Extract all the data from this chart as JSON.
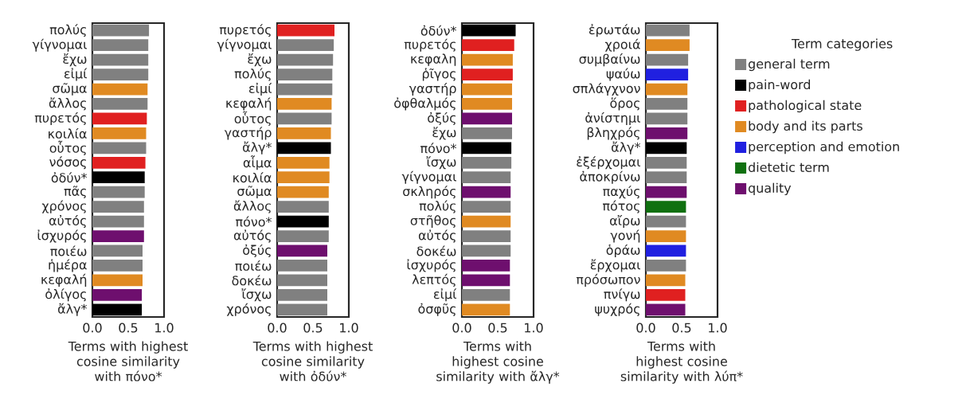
{
  "chart_data": [
    {
      "type": "bar",
      "orientation": "horizontal",
      "xlabel": "Terms with highest cosine similarity with πόνο*",
      "categories": [
        "πολύς",
        "γίγνομαι",
        "ἔχω",
        "εἰμί",
        "σῶμα",
        "ἄλλος",
        "πυρετός",
        "κοιλία",
        "οὗτος",
        "νόσος",
        "ὀδύν*",
        "πᾶς",
        "χρόνος",
        "αὐτός",
        "ἰσχυρός",
        "ποιέω",
        "ἡμέρα",
        "κεφαλή",
        "ὀλίγος",
        "ἄλγ*"
      ],
      "series": [
        {
          "color": "#808080",
          "values": [
            0.79,
            0.78,
            0.78,
            0.78,
            null,
            0.77,
            null,
            null,
            0.75,
            null,
            null,
            0.73,
            0.72,
            0.72,
            null,
            0.7,
            0.7,
            null,
            null,
            null
          ]
        },
        {
          "color": "#000000",
          "values": [
            null,
            null,
            null,
            null,
            null,
            null,
            null,
            null,
            null,
            null,
            0.73,
            null,
            null,
            null,
            null,
            null,
            null,
            null,
            null,
            0.69
          ]
        },
        {
          "color": "#e02020",
          "values": [
            null,
            null,
            null,
            null,
            null,
            null,
            0.76,
            null,
            null,
            0.74,
            null,
            null,
            null,
            null,
            null,
            null,
            null,
            null,
            null,
            null
          ]
        },
        {
          "color": "#e08a22",
          "values": [
            null,
            null,
            null,
            null,
            0.77,
            null,
            null,
            0.75,
            null,
            null,
            null,
            null,
            null,
            null,
            null,
            null,
            null,
            0.7,
            null,
            null
          ]
        },
        {
          "color": "#6e0f6e",
          "values": [
            null,
            null,
            null,
            null,
            null,
            null,
            null,
            null,
            null,
            null,
            null,
            null,
            null,
            null,
            0.72,
            null,
            null,
            null,
            0.69,
            null
          ]
        }
      ],
      "xlim": [
        0,
        1
      ],
      "xticks": [
        {
          "value": 0,
          "label": "0.0"
        },
        {
          "value": 0.5,
          "label": "0.5"
        },
        {
          "value": 1,
          "label": "1.0"
        }
      ],
      "grid": false,
      "legend": false
    },
    {
      "type": "bar",
      "orientation": "horizontal",
      "xlabel": "Terms with highest cosine similarity with ὀδύν*",
      "categories": [
        "πυρετός",
        "γίγνομαι",
        "ἔχω",
        "πολύς",
        "εἰμί",
        "κεφαλή",
        "οὗτος",
        "γαστήρ",
        "ἄλγ*",
        "αἷμα",
        "κοιλία",
        "σῶμα",
        "ἄλλος",
        "πόνο*",
        "αὐτός",
        "ὀξύς",
        "ποιέω",
        "δοκέω",
        "ἴσχω",
        "χρόνος"
      ],
      "series": [
        {
          "color": "#808080",
          "values": [
            null,
            0.79,
            0.78,
            0.77,
            0.77,
            null,
            0.76,
            null,
            null,
            null,
            null,
            null,
            0.72,
            null,
            0.72,
            null,
            0.7,
            0.7,
            0.7,
            0.7
          ]
        },
        {
          "color": "#000000",
          "values": [
            null,
            null,
            null,
            null,
            null,
            null,
            null,
            null,
            0.75,
            null,
            null,
            null,
            null,
            0.72,
            null,
            null,
            null,
            null,
            null,
            null
          ]
        },
        {
          "color": "#e02020",
          "values": [
            0.8,
            null,
            null,
            null,
            null,
            null,
            null,
            null,
            null,
            null,
            null,
            null,
            null,
            null,
            null,
            null,
            null,
            null,
            null,
            null
          ]
        },
        {
          "color": "#e08a22",
          "values": [
            null,
            null,
            null,
            null,
            null,
            0.76,
            null,
            0.75,
            null,
            0.73,
            0.73,
            0.72,
            null,
            null,
            null,
            null,
            null,
            null,
            null,
            null
          ]
        },
        {
          "color": "#6e0f6e",
          "values": [
            null,
            null,
            null,
            null,
            null,
            null,
            null,
            null,
            null,
            null,
            null,
            null,
            null,
            null,
            null,
            0.7,
            null,
            null,
            null,
            null
          ]
        }
      ],
      "xlim": [
        0,
        1
      ],
      "xticks": [
        {
          "value": 0,
          "label": "0.0"
        },
        {
          "value": 0.5,
          "label": "0.5"
        },
        {
          "value": 1,
          "label": "1.0"
        }
      ],
      "grid": false,
      "legend": false
    },
    {
      "type": "bar",
      "orientation": "horizontal",
      "xlabel": "Terms with highest cosine similarity with ἄλγ*",
      "categories": [
        "ὀδύν*",
        "πυρετός",
        "κεφαλη",
        "ῥῖγος",
        "γαστήρ",
        "ὀφθαλμός",
        "ὀξύς",
        "ἔχω",
        "πόνο*",
        "ἴσχω",
        "γίγνομαι",
        "σκληρός",
        "πολύς",
        "στῆθος",
        "αὐτός",
        "δοκέω",
        "ἰσχυρός",
        "λεπτός",
        "εἰμί",
        "ὀσφῦς"
      ],
      "series": [
        {
          "color": "#808080",
          "values": [
            null,
            null,
            null,
            null,
            null,
            null,
            null,
            0.7,
            null,
            0.69,
            0.68,
            null,
            0.68,
            null,
            0.68,
            0.68,
            null,
            null,
            0.67,
            null
          ]
        },
        {
          "color": "#000000",
          "values": [
            0.75,
            null,
            null,
            null,
            null,
            null,
            null,
            null,
            0.69,
            null,
            null,
            null,
            null,
            null,
            null,
            null,
            null,
            null,
            null,
            null
          ]
        },
        {
          "color": "#e02020",
          "values": [
            null,
            0.73,
            null,
            0.71,
            null,
            null,
            null,
            null,
            null,
            null,
            null,
            null,
            null,
            null,
            null,
            null,
            null,
            null,
            null,
            null
          ]
        },
        {
          "color": "#e08a22",
          "values": [
            null,
            null,
            0.71,
            null,
            0.7,
            0.7,
            null,
            null,
            null,
            null,
            null,
            null,
            null,
            0.68,
            null,
            null,
            null,
            null,
            null,
            0.67
          ]
        },
        {
          "color": "#6e0f6e",
          "values": [
            null,
            null,
            null,
            null,
            null,
            null,
            0.7,
            null,
            null,
            null,
            null,
            0.68,
            null,
            null,
            null,
            null,
            0.67,
            0.67,
            null,
            null
          ]
        }
      ],
      "xlim": [
        0,
        1
      ],
      "xticks": [
        {
          "value": 0,
          "label": "0.0"
        },
        {
          "value": 0.5,
          "label": "0.5"
        },
        {
          "value": 1,
          "label": "1.0"
        }
      ],
      "grid": false,
      "legend": false
    },
    {
      "type": "bar",
      "orientation": "horizontal",
      "xlabel": "Terms with highest cosine similarity with λύπ*",
      "legend_title": "Term categories",
      "categories": [
        "ἐρωτάω",
        "χροιά",
        "συμβαίνω",
        "ψαύω",
        "σπλάγχνον",
        "ὅρος",
        "ἀνίστημι",
        "βληχρός",
        "ἄλγ*",
        "ἐξέρχομαι",
        "ἀποκρίνω",
        "παχύς",
        "πότος",
        "αἴρω",
        "γονή",
        "ὁράω",
        "ἔρχομαι",
        "πρόσωπον",
        "πνίγω",
        "ψυχρός"
      ],
      "series": [
        {
          "name": "general term",
          "color": "#808080",
          "values": [
            0.61,
            null,
            0.59,
            null,
            null,
            0.58,
            0.58,
            null,
            null,
            0.57,
            0.57,
            null,
            null,
            0.56,
            null,
            null,
            0.56,
            null,
            null,
            null
          ]
        },
        {
          "name": "pain-word",
          "color": "#000000",
          "values": [
            null,
            null,
            null,
            null,
            null,
            null,
            null,
            null,
            0.57,
            null,
            null,
            null,
            null,
            null,
            null,
            null,
            null,
            null,
            null,
            null
          ]
        },
        {
          "name": "pathological state",
          "color": "#e02020",
          "values": [
            null,
            null,
            null,
            null,
            null,
            null,
            null,
            null,
            null,
            null,
            null,
            null,
            null,
            null,
            null,
            null,
            null,
            null,
            0.55,
            null
          ]
        },
        {
          "name": "body and its parts",
          "color": "#e08a22",
          "values": [
            null,
            0.61,
            null,
            null,
            0.58,
            null,
            null,
            null,
            null,
            null,
            null,
            null,
            null,
            null,
            0.56,
            null,
            null,
            0.55,
            null,
            null
          ]
        },
        {
          "name": "perception and emotion",
          "color": "#2020e0",
          "values": [
            null,
            null,
            null,
            0.59,
            null,
            null,
            null,
            null,
            null,
            null,
            null,
            null,
            null,
            null,
            null,
            0.56,
            null,
            null,
            null,
            null
          ]
        },
        {
          "name": "dietetic term",
          "color": "#107010",
          "values": [
            null,
            null,
            null,
            null,
            null,
            null,
            null,
            null,
            null,
            null,
            null,
            null,
            0.56,
            null,
            null,
            null,
            null,
            null,
            null,
            null
          ]
        },
        {
          "name": "quality",
          "color": "#6e0f6e",
          "values": [
            null,
            null,
            null,
            null,
            null,
            null,
            null,
            0.58,
            null,
            null,
            null,
            0.57,
            null,
            null,
            null,
            null,
            null,
            null,
            null,
            0.55
          ]
        }
      ],
      "xlim": [
        0,
        1
      ],
      "xticks": [
        {
          "value": 0,
          "label": "0.0"
        },
        {
          "value": 0.5,
          "label": "0.5"
        },
        {
          "value": 1,
          "label": "1.0"
        }
      ],
      "grid": false,
      "legend": "right"
    }
  ]
}
